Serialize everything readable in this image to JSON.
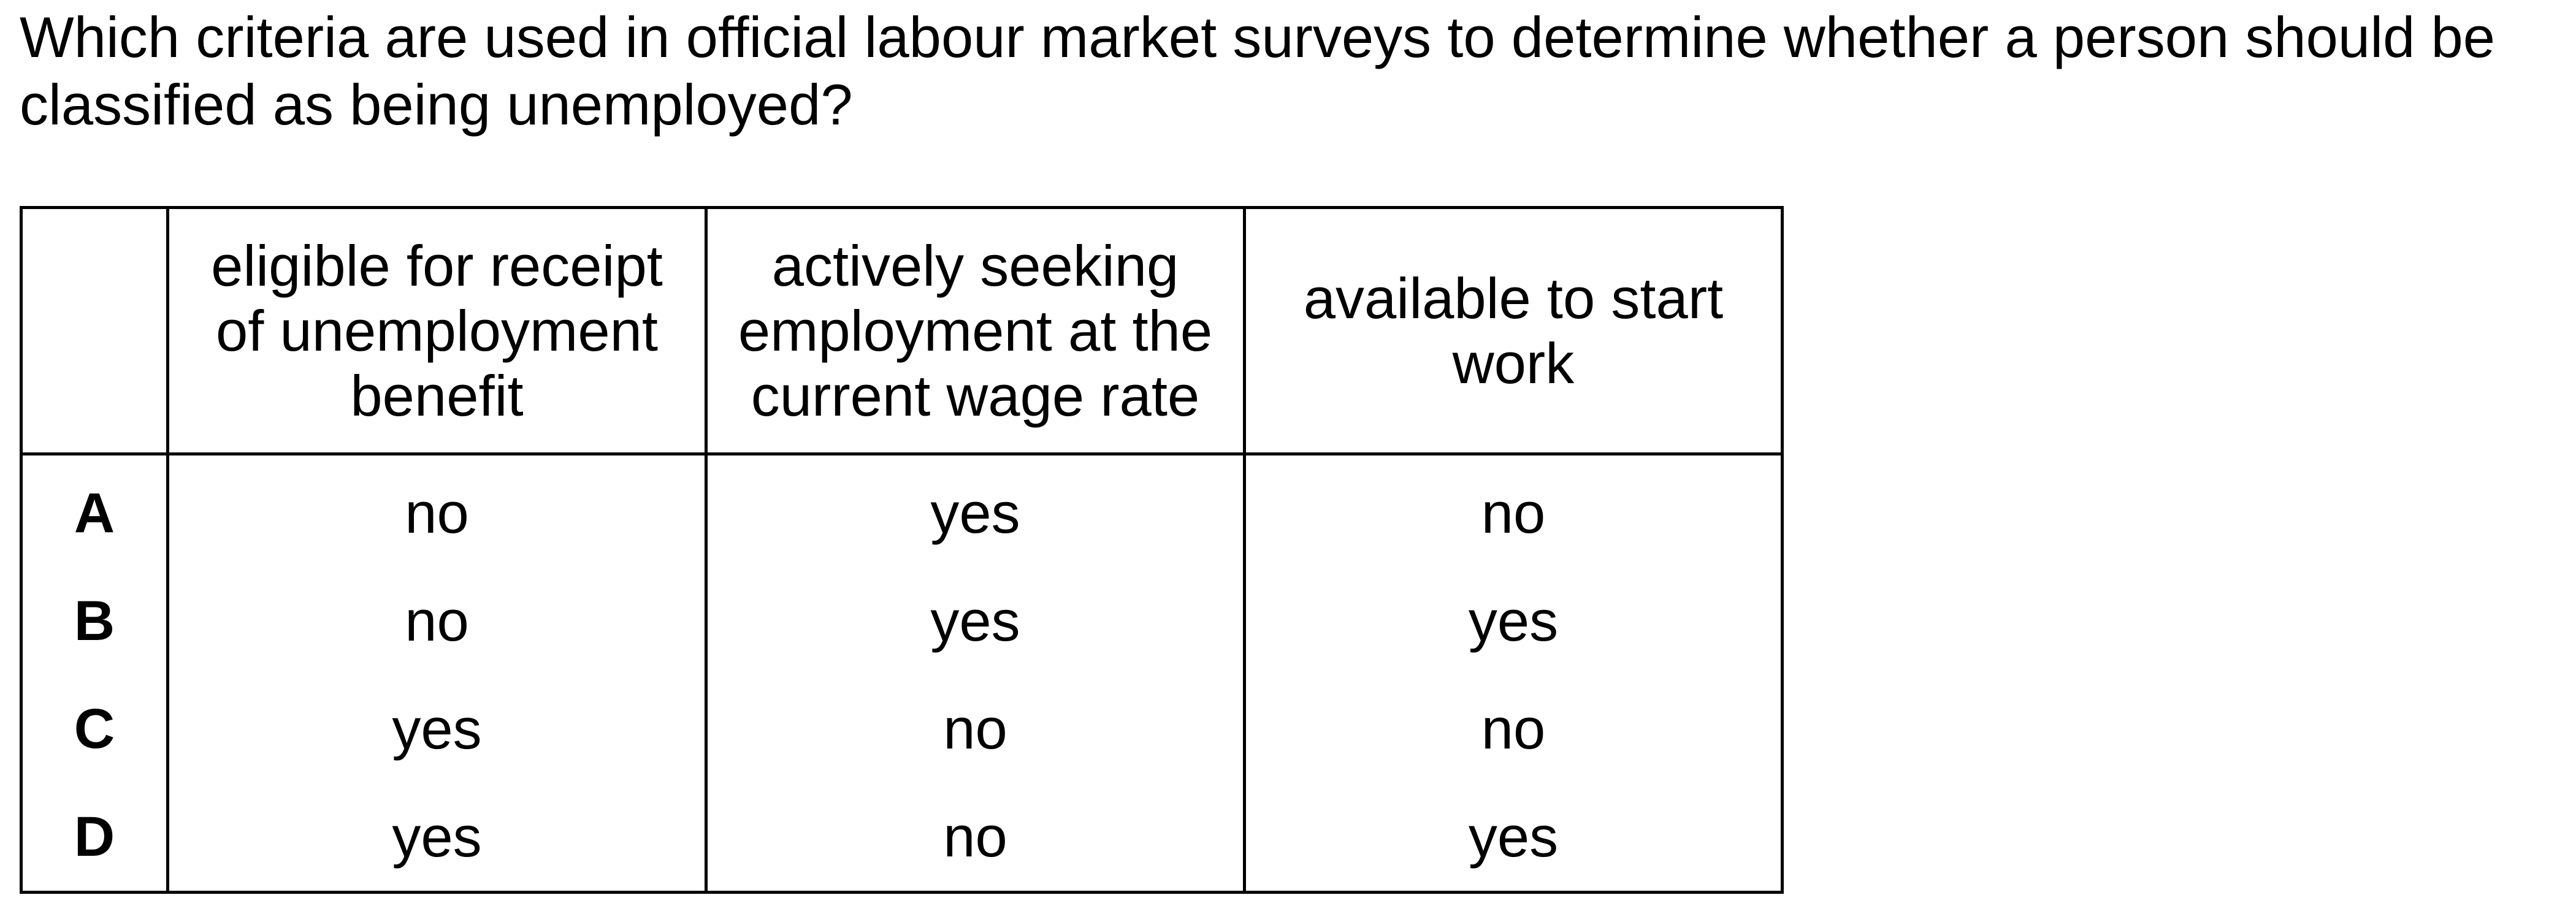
{
  "question": "Which criteria are used in official labour market surveys to determine whether a person should be classified as being unemployed?",
  "table": {
    "headers": [
      "",
      "eligible for receipt of unemployment benefit",
      "actively seeking employment at the current wage rate",
      "available to start work"
    ],
    "rows": [
      {
        "key": "A",
        "values": [
          "no",
          "yes",
          "no"
        ]
      },
      {
        "key": "B",
        "values": [
          "no",
          "yes",
          "yes"
        ]
      },
      {
        "key": "C",
        "values": [
          "yes",
          "no",
          "no"
        ]
      },
      {
        "key": "D",
        "values": [
          "yes",
          "no",
          "yes"
        ]
      }
    ]
  }
}
